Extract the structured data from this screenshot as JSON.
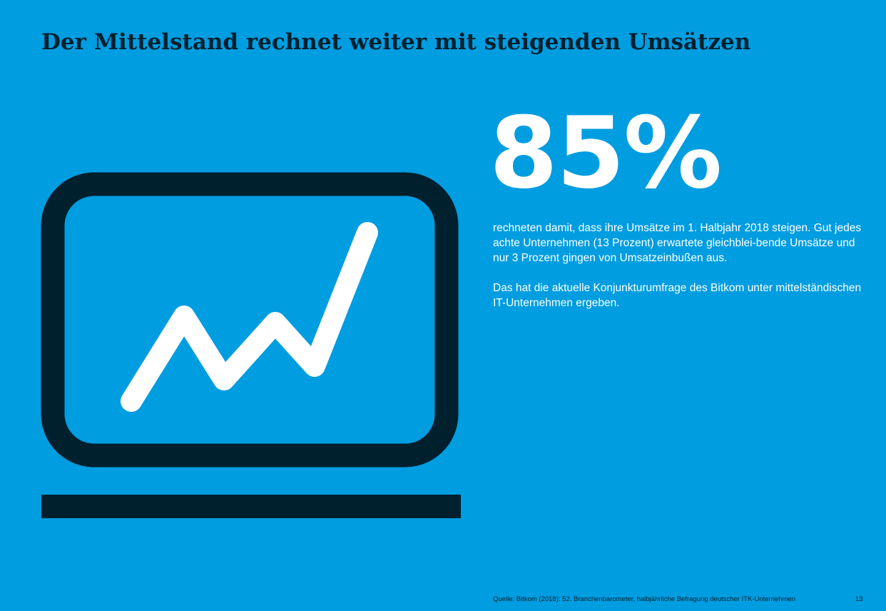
{
  "page": {
    "title": "Der Mittelstand rechnet weiter mit steigenden Umsätzen",
    "background_color": "#009de0",
    "text_dark_color": "#00202e"
  },
  "icon": {
    "name": "laptop-rising-chart-icon",
    "frame_color": "#00202e",
    "line_color": "#ffffff"
  },
  "highlight": {
    "value": "85%"
  },
  "body": {
    "paragraph_1": "rechneten damit, dass ihre Umsätze im 1. Halbjahr 2018 steigen. Gut jedes achte Unternehmen (13 Prozent) erwartete gleichblei-bende Umsätze und nur 3 Prozent gingen von Umsatzeinbußen aus.",
    "paragraph_2": "Das hat die aktuelle Konjunkturumfrage des Bitkom unter mittelständischen IT-Unternehmen ergeben."
  },
  "footer": {
    "source": "Quelle: Bitkom (2018): 52. Branchenbarometer, halbjährliche Befragung deutscher ITK-Unternehmen",
    "page_number": "13"
  }
}
